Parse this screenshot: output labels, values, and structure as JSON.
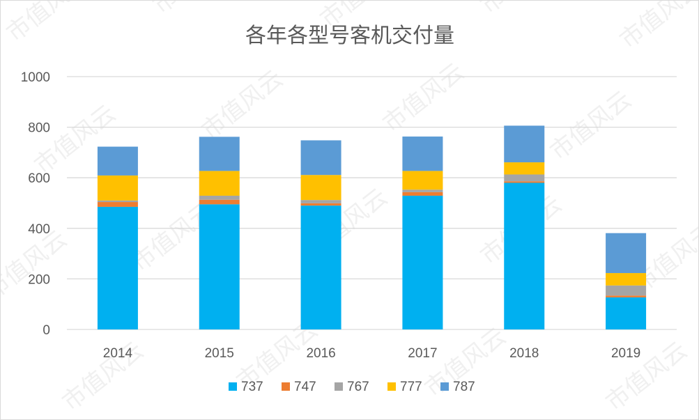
{
  "watermark_text": "市值风云",
  "colors": {
    "737": "#00b0f0",
    "747": "#ed7d31",
    "767": "#a5a5a5",
    "777": "#ffc000",
    "787": "#5b9bd5"
  },
  "chart_data": {
    "type": "bar",
    "stacked": true,
    "title": "各年各型号客机交付量",
    "xlabel": "",
    "ylabel": "",
    "categories": [
      "2014",
      "2015",
      "2016",
      "2017",
      "2018",
      "2019"
    ],
    "ylim": [
      0,
      1000
    ],
    "yticks": [
      "0",
      "200",
      "400",
      "600",
      "800",
      "1000"
    ],
    "grid": true,
    "legend_position": "bottom",
    "series": [
      {
        "name": "737",
        "values": [
          485,
          495,
          490,
          529,
          580,
          127
        ]
      },
      {
        "name": "747",
        "values": [
          19,
          18,
          9,
          14,
          6,
          7
        ]
      },
      {
        "name": "767",
        "values": [
          6,
          16,
          13,
          10,
          27,
          40
        ]
      },
      {
        "name": "777",
        "values": [
          99,
          98,
          99,
          74,
          48,
          49
        ]
      },
      {
        "name": "787",
        "values": [
          114,
          135,
          137,
          136,
          145,
          158
        ]
      }
    ]
  }
}
